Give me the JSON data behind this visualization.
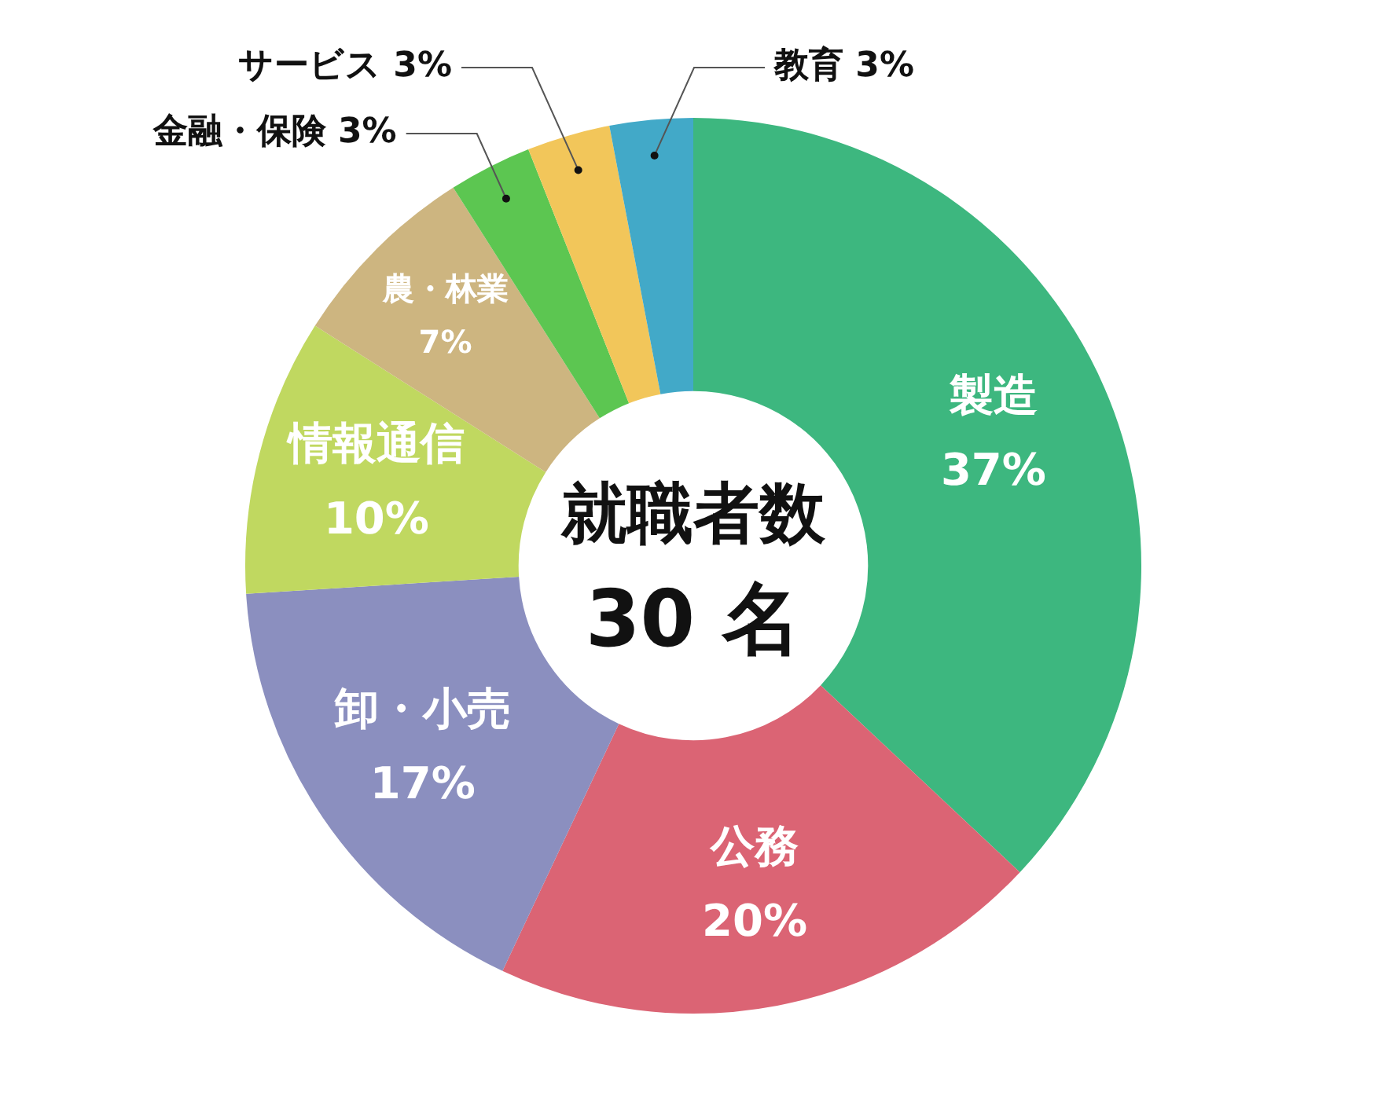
{
  "chart_data": {
    "type": "donut",
    "title": "就職者数",
    "subtitle": "30 名",
    "categories": [
      "製造",
      "公務",
      "卸・小売",
      "情報通信",
      "農・林業",
      "金融・保険",
      "サービス",
      "教育"
    ],
    "values": [
      37,
      20,
      17,
      10,
      7,
      3,
      3,
      3
    ],
    "colors": [
      "#3db77f",
      "#db6474",
      "#8b8fbf",
      "#c0d860",
      "#cdb580",
      "#5cc651",
      "#f2c65a",
      "#42a9c8"
    ],
    "value_labels": [
      "37%",
      "20%",
      "17%",
      "10%",
      "7%",
      "3%",
      "3%",
      "3%"
    ],
    "legend": false
  }
}
